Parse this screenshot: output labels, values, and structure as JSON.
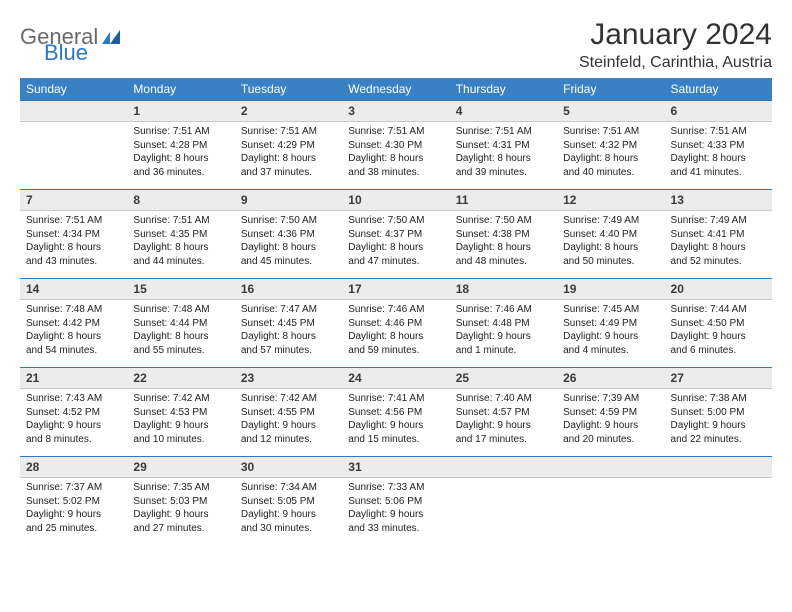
{
  "logo": {
    "general": "General",
    "blue": "Blue"
  },
  "title": "January 2024",
  "location": "Steinfeld, Carinthia, Austria",
  "colors": {
    "header_bg": "#3a81c4",
    "header_text": "#ffffff",
    "daynum_bg": "#ececec",
    "daynum_border_top": "#2f78c3",
    "body_text": "#222222",
    "logo_gray": "#6a6a6a",
    "logo_blue": "#2f78c3"
  },
  "day_names": [
    "Sunday",
    "Monday",
    "Tuesday",
    "Wednesday",
    "Thursday",
    "Friday",
    "Saturday"
  ],
  "weeks": [
    {
      "nums": [
        "",
        "1",
        "2",
        "3",
        "4",
        "5",
        "6"
      ],
      "cells": [
        "",
        "Sunrise: 7:51 AM\nSunset: 4:28 PM\nDaylight: 8 hours\nand 36 minutes.",
        "Sunrise: 7:51 AM\nSunset: 4:29 PM\nDaylight: 8 hours\nand 37 minutes.",
        "Sunrise: 7:51 AM\nSunset: 4:30 PM\nDaylight: 8 hours\nand 38 minutes.",
        "Sunrise: 7:51 AM\nSunset: 4:31 PM\nDaylight: 8 hours\nand 39 minutes.",
        "Sunrise: 7:51 AM\nSunset: 4:32 PM\nDaylight: 8 hours\nand 40 minutes.",
        "Sunrise: 7:51 AM\nSunset: 4:33 PM\nDaylight: 8 hours\nand 41 minutes."
      ]
    },
    {
      "nums": [
        "7",
        "8",
        "9",
        "10",
        "11",
        "12",
        "13"
      ],
      "cells": [
        "Sunrise: 7:51 AM\nSunset: 4:34 PM\nDaylight: 8 hours\nand 43 minutes.",
        "Sunrise: 7:51 AM\nSunset: 4:35 PM\nDaylight: 8 hours\nand 44 minutes.",
        "Sunrise: 7:50 AM\nSunset: 4:36 PM\nDaylight: 8 hours\nand 45 minutes.",
        "Sunrise: 7:50 AM\nSunset: 4:37 PM\nDaylight: 8 hours\nand 47 minutes.",
        "Sunrise: 7:50 AM\nSunset: 4:38 PM\nDaylight: 8 hours\nand 48 minutes.",
        "Sunrise: 7:49 AM\nSunset: 4:40 PM\nDaylight: 8 hours\nand 50 minutes.",
        "Sunrise: 7:49 AM\nSunset: 4:41 PM\nDaylight: 8 hours\nand 52 minutes."
      ]
    },
    {
      "nums": [
        "14",
        "15",
        "16",
        "17",
        "18",
        "19",
        "20"
      ],
      "cells": [
        "Sunrise: 7:48 AM\nSunset: 4:42 PM\nDaylight: 8 hours\nand 54 minutes.",
        "Sunrise: 7:48 AM\nSunset: 4:44 PM\nDaylight: 8 hours\nand 55 minutes.",
        "Sunrise: 7:47 AM\nSunset: 4:45 PM\nDaylight: 8 hours\nand 57 minutes.",
        "Sunrise: 7:46 AM\nSunset: 4:46 PM\nDaylight: 8 hours\nand 59 minutes.",
        "Sunrise: 7:46 AM\nSunset: 4:48 PM\nDaylight: 9 hours\nand 1 minute.",
        "Sunrise: 7:45 AM\nSunset: 4:49 PM\nDaylight: 9 hours\nand 4 minutes.",
        "Sunrise: 7:44 AM\nSunset: 4:50 PM\nDaylight: 9 hours\nand 6 minutes."
      ]
    },
    {
      "nums": [
        "21",
        "22",
        "23",
        "24",
        "25",
        "26",
        "27"
      ],
      "cells": [
        "Sunrise: 7:43 AM\nSunset: 4:52 PM\nDaylight: 9 hours\nand 8 minutes.",
        "Sunrise: 7:42 AM\nSunset: 4:53 PM\nDaylight: 9 hours\nand 10 minutes.",
        "Sunrise: 7:42 AM\nSunset: 4:55 PM\nDaylight: 9 hours\nand 12 minutes.",
        "Sunrise: 7:41 AM\nSunset: 4:56 PM\nDaylight: 9 hours\nand 15 minutes.",
        "Sunrise: 7:40 AM\nSunset: 4:57 PM\nDaylight: 9 hours\nand 17 minutes.",
        "Sunrise: 7:39 AM\nSunset: 4:59 PM\nDaylight: 9 hours\nand 20 minutes.",
        "Sunrise: 7:38 AM\nSunset: 5:00 PM\nDaylight: 9 hours\nand 22 minutes."
      ]
    },
    {
      "nums": [
        "28",
        "29",
        "30",
        "31",
        "",
        "",
        ""
      ],
      "cells": [
        "Sunrise: 7:37 AM\nSunset: 5:02 PM\nDaylight: 9 hours\nand 25 minutes.",
        "Sunrise: 7:35 AM\nSunset: 5:03 PM\nDaylight: 9 hours\nand 27 minutes.",
        "Sunrise: 7:34 AM\nSunset: 5:05 PM\nDaylight: 9 hours\nand 30 minutes.",
        "Sunrise: 7:33 AM\nSunset: 5:06 PM\nDaylight: 9 hours\nand 33 minutes.",
        "",
        "",
        ""
      ]
    }
  ]
}
